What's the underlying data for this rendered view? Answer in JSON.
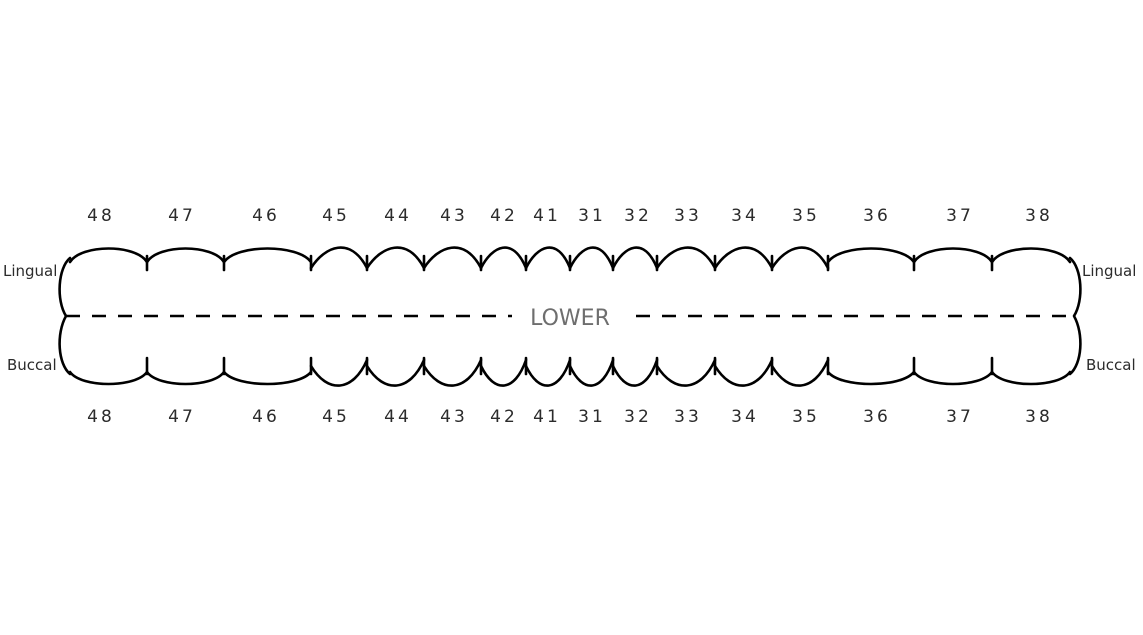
{
  "arch": {
    "center_label": "LOWER",
    "left_top_label": "Lingual",
    "left_bottom_label": "Buccal",
    "right_top_label": "Lingual",
    "right_bottom_label": "Buccal"
  },
  "teeth_top": [
    "48",
    "47",
    "46",
    "45",
    "44",
    "43",
    "42",
    "41",
    "31",
    "32",
    "33",
    "34",
    "35",
    "36",
    "37",
    "38"
  ],
  "teeth_bottom": [
    "48",
    "47",
    "46",
    "45",
    "44",
    "43",
    "42",
    "41",
    "31",
    "32",
    "33",
    "34",
    "35",
    "36",
    "37",
    "38"
  ]
}
